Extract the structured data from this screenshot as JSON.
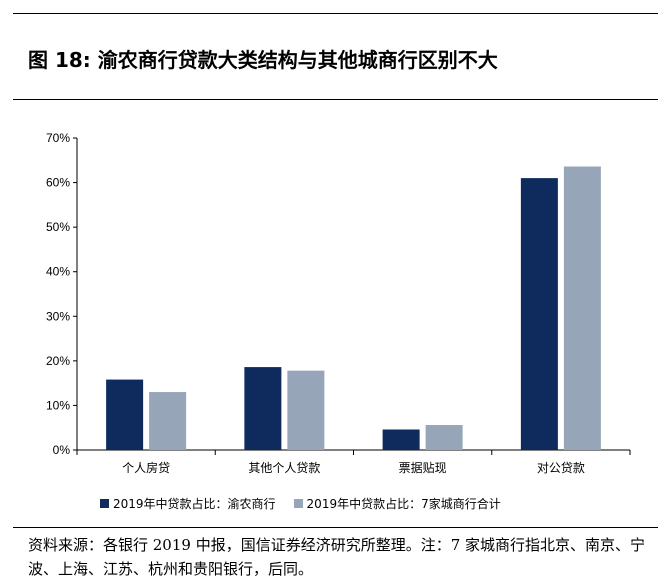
{
  "figure": {
    "label": "图 18:",
    "title": "渝农商行贷款大类结构与其他城商行区别不大"
  },
  "chart_data": {
    "type": "bar",
    "categories": [
      "个人房贷",
      "其他个人贷款",
      "票据贴现",
      "对公贷款"
    ],
    "series": [
      {
        "name": "2019年中贷款占比：渝农商行",
        "color": "#0f2a5c",
        "values": [
          15.8,
          18.6,
          4.6,
          61.0
        ]
      },
      {
        "name": "2019年中贷款占比：7家城商行合计",
        "color": "#96a6b8",
        "values": [
          13.0,
          17.8,
          5.6,
          63.6
        ]
      }
    ],
    "ylim": [
      0,
      70
    ],
    "yticks": [
      "0%",
      "10%",
      "20%",
      "30%",
      "40%",
      "50%",
      "60%",
      "70%"
    ],
    "grid": false,
    "legend_position": "bottom"
  },
  "source": "资料来源：各银行 2019 中报，国信证券经济研究所整理。注：7 家城商行指北京、南京、宁波、上海、江苏、杭州和贵阳银行，后同。"
}
